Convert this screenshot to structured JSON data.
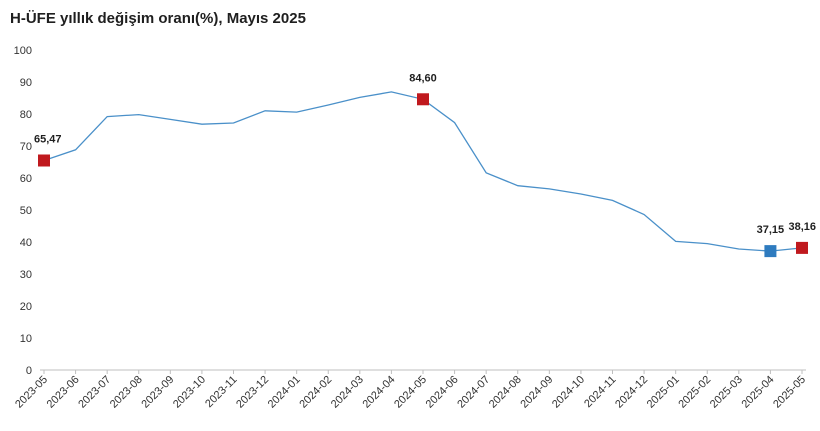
{
  "chart_data": {
    "type": "line",
    "title": "H-ÜFE yıllık değişim oranı(%), Mayıs 2025",
    "xlabel": "",
    "ylabel": "",
    "ylim": [
      0,
      100
    ],
    "yticks": [
      0,
      10,
      20,
      30,
      40,
      50,
      60,
      70,
      80,
      90,
      100
    ],
    "grid": false,
    "categories": [
      "2023-05",
      "2023-06",
      "2023-07",
      "2023-08",
      "2023-09",
      "2023-10",
      "2023-11",
      "2023-12",
      "2024-01",
      "2024-02",
      "2024-03",
      "2024-04",
      "2024-05",
      "2024-06",
      "2024-07",
      "2024-08",
      "2024-09",
      "2024-10",
      "2024-11",
      "2024-12",
      "2025-01",
      "2025-02",
      "2025-03",
      "2025-04",
      "2025-05"
    ],
    "series": [
      {
        "name": "H-ÜFE",
        "color": "#4a90c9",
        "values": [
          65.47,
          68.8,
          79.2,
          79.8,
          78.3,
          76.8,
          77.2,
          81.0,
          80.6,
          82.8,
          85.2,
          86.9,
          84.6,
          77.3,
          61.6,
          57.6,
          56.6,
          55.0,
          53.0,
          48.6,
          40.2,
          39.5,
          37.8,
          37.15,
          38.16
        ]
      }
    ],
    "highlights": [
      {
        "index": 0,
        "label": "65,47",
        "color": "#c0191e",
        "label_pos": "above"
      },
      {
        "index": 12,
        "label": "84,60",
        "color": "#c0191e",
        "label_pos": "above"
      },
      {
        "index": 23,
        "label": "37,15",
        "color": "#2e7bbf",
        "label_pos": "above"
      },
      {
        "index": 24,
        "label": "38,16",
        "color": "#c0191e",
        "label_pos": "above"
      }
    ]
  }
}
